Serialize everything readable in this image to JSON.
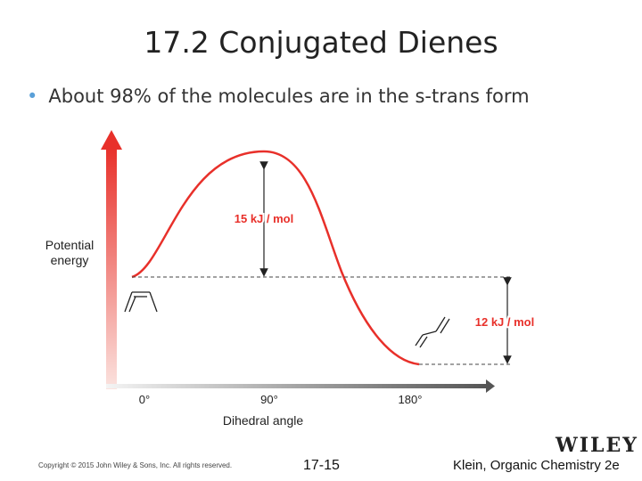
{
  "slide": {
    "title": "17.2 Conjugated Dienes",
    "bullet": "About 98% of the molecules are in the s-trans form"
  },
  "diagram": {
    "y_axis_label_line1": "Potential",
    "y_axis_label_line2": "energy",
    "x_axis_label": "Dihedral angle",
    "x_ticks": [
      "0°",
      "90°",
      "180°"
    ],
    "barrier_label": "15 kJ / mol",
    "difference_label": "12 kJ / mol",
    "colors": {
      "curve": "#e8302a",
      "axis": "#e8302a",
      "arrows": "#222222"
    }
  },
  "footer": {
    "copyright": "Copyright © 2015 John Wiley & Sons, Inc. All rights reserved.",
    "page": "17-15",
    "book": "Klein, Organic Chemistry 2e",
    "publisher": "WILEY"
  }
}
